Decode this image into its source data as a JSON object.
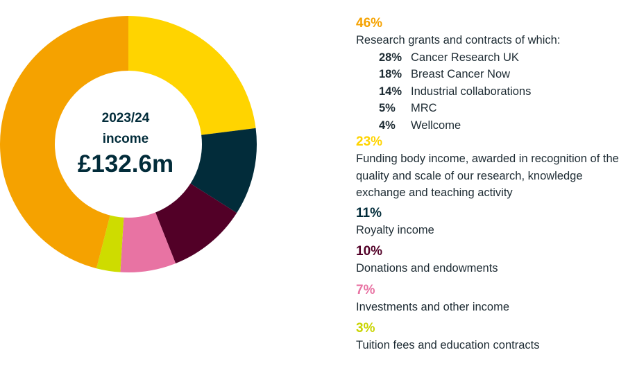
{
  "chart_data": {
    "type": "pie",
    "center_label": {
      "year": "2023/24",
      "word": "income",
      "total": "£132.6m"
    },
    "categories": [
      "Research grants and contracts",
      "Funding body income",
      "Royalty income",
      "Donations and endowments",
      "Investments and other income",
      "Tuition fees and education contracts"
    ],
    "values": [
      46,
      23,
      11,
      10,
      7,
      3
    ],
    "colors": [
      "#F5A200",
      "#FFD400",
      "#022C3A",
      "#520027",
      "#E873A3",
      "#CEDC00"
    ]
  },
  "legend": {
    "items": [
      {
        "pct": "46%",
        "color": "#F5A200",
        "label": "Research grants and contracts of which:",
        "sub": [
          {
            "pct": "28%",
            "label": "Cancer Research UK"
          },
          {
            "pct": "18%",
            "label": "Breast Cancer Now"
          },
          {
            "pct": "14%",
            "label": "Industrial collaborations"
          },
          {
            "pct": "5%",
            "label": "MRC"
          },
          {
            "pct": "4%",
            "label": "Wellcome"
          }
        ]
      },
      {
        "pct": "23%",
        "color": "#FFD400",
        "label": "Funding body income, awarded in recognition of the quality and scale of our research, knowledge exchange and teaching activity"
      },
      {
        "pct": "11%",
        "color": "#022C3A",
        "label": "Royalty income"
      },
      {
        "pct": "10%",
        "color": "#520027",
        "label": "Donations and endowments"
      },
      {
        "pct": "7%",
        "color": "#E873A3",
        "label": "Investments and other income"
      },
      {
        "pct": "3%",
        "color": "#C9D400",
        "label": "Tuition fees and education contracts"
      }
    ]
  }
}
